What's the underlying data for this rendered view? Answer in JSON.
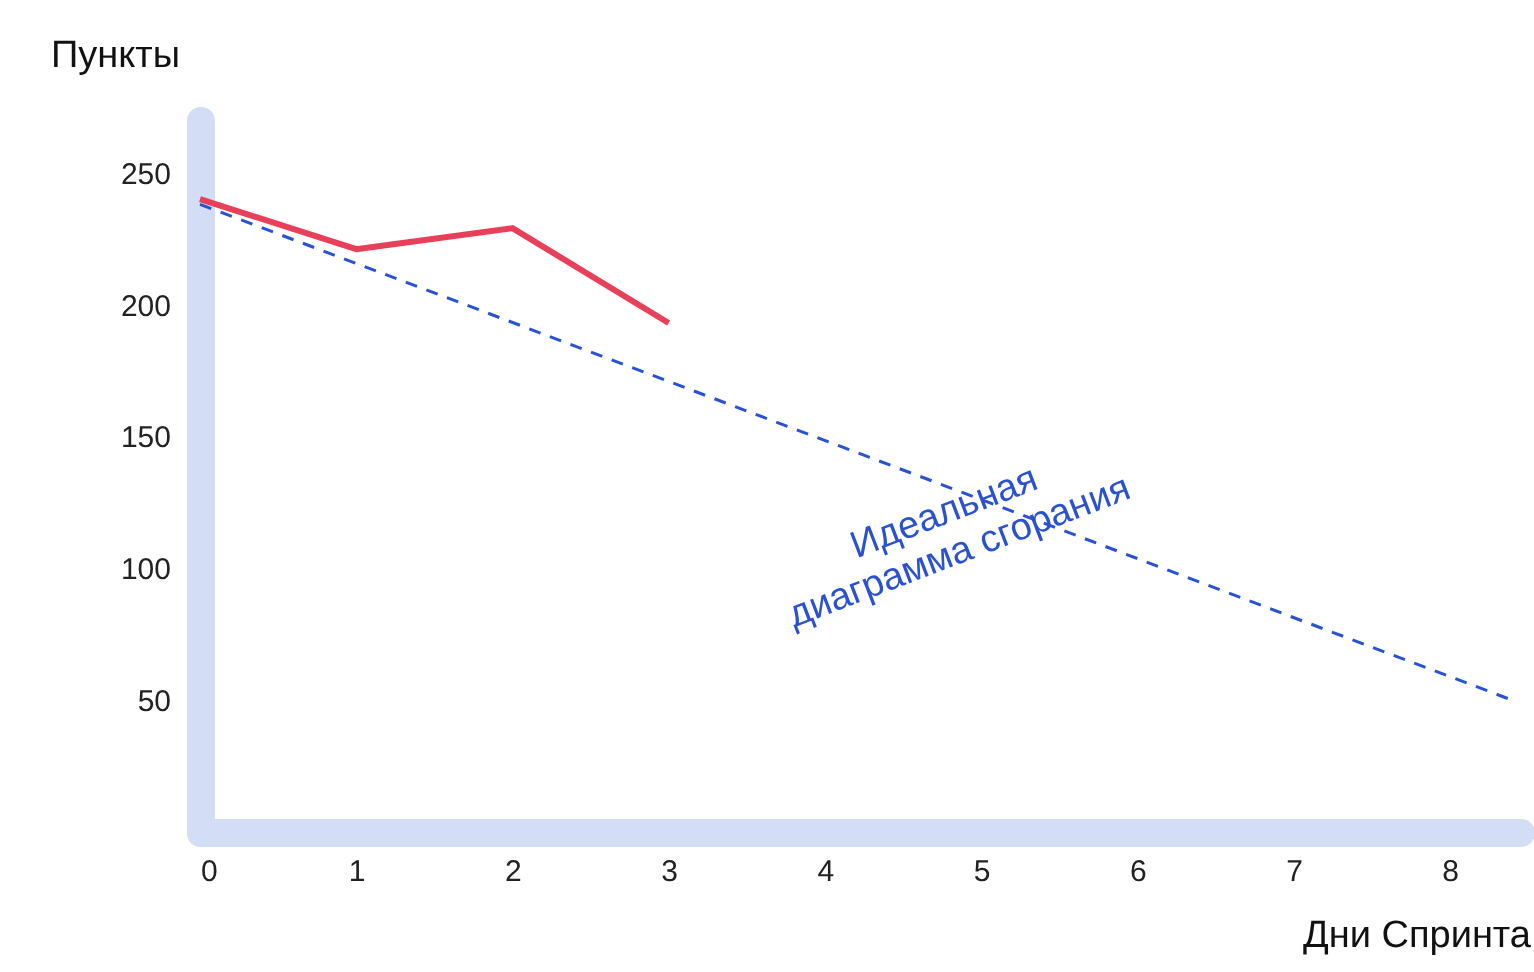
{
  "chart_data": {
    "type": "line",
    "xlabel": "Дни Спринта",
    "ylabel": "Пункты",
    "series": [
      {
        "color": "#e8405a",
        "x": [
          0,
          1,
          2,
          3
        ],
        "values": [
          240,
          221,
          229,
          193
        ],
        "line_style": "solid"
      },
      {
        "color": "#2a52d0",
        "x": [
          0,
          8.4
        ],
        "values": [
          238,
          50
        ],
        "line_style": "dashed"
      }
    ],
    "annotations": [
      "Идеальная\nдиаграмма сгорания"
    ],
    "xlim": [
      0,
      8.45
    ],
    "xticks": [
      0,
      1,
      2,
      3,
      4,
      5,
      6,
      7,
      8
    ],
    "ylim": [
      0,
      270
    ],
    "yticks": [
      50,
      100,
      150,
      200,
      250
    ],
    "grid": false,
    "marker": "none"
  }
}
